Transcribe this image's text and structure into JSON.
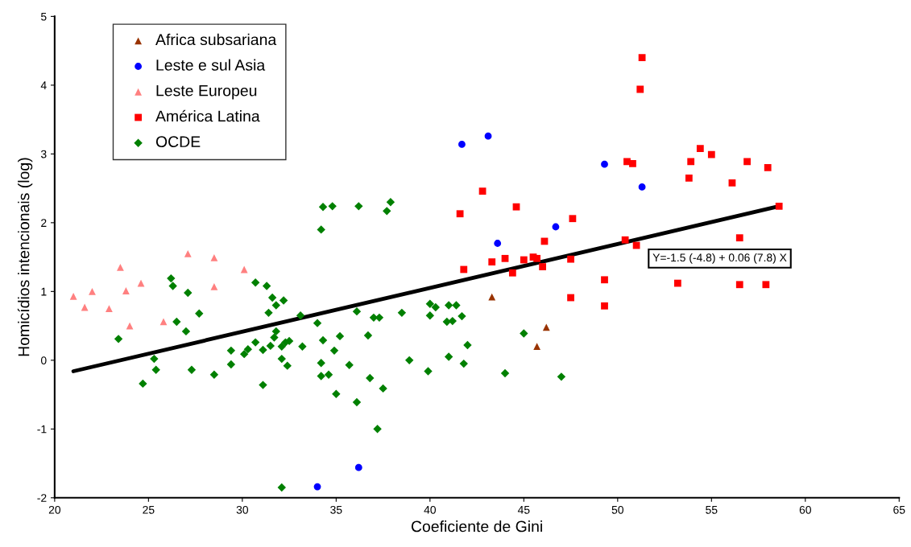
{
  "chart_data": {
    "type": "scatter",
    "xlabel": "Coeficiente de Gini",
    "ylabel": "Homicídios intencionais (log)",
    "xlim": [
      20,
      65
    ],
    "xticks": [
      20,
      25,
      30,
      35,
      40,
      45,
      50,
      55,
      60,
      65
    ],
    "ylim": [
      -2,
      5
    ],
    "yticks": [
      -2,
      -1,
      0,
      1,
      2,
      3,
      4,
      5
    ],
    "grid": false,
    "legend": "top left",
    "annotations": [
      "Y=-1.5 (-4.8) + 0.06 (7.8) X"
    ],
    "series": [
      {
        "name": "Africa subsariana",
        "color": "#993300",
        "marker": "triangle",
        "x": [
          43.3,
          46.2,
          45.7
        ],
        "values": [
          0.92,
          0.48,
          0.2
        ]
      },
      {
        "name": "Leste e sul Asia",
        "color": "#0000ff",
        "marker": "circle",
        "x": [
          41.7,
          43.1,
          43.6,
          46.7,
          49.3,
          51.3,
          36.2,
          34.0
        ],
        "values": [
          3.14,
          3.26,
          1.7,
          1.94,
          2.85,
          2.52,
          -1.56,
          -1.84
        ]
      },
      {
        "name": "Leste Europeu",
        "color": "#ff8080",
        "marker": "triangle",
        "x": [
          21.0,
          21.6,
          22.0,
          22.9,
          23.5,
          23.8,
          24.0,
          24.6,
          25.8,
          27.1,
          28.5,
          28.5,
          30.1
        ],
        "values": [
          0.93,
          0.77,
          1.0,
          0.75,
          1.35,
          1.01,
          0.5,
          1.12,
          0.56,
          1.55,
          1.49,
          1.07,
          1.32
        ]
      },
      {
        "name": "América Latina",
        "color": "#ff0000",
        "marker": "square",
        "x": [
          51.3,
          51.2,
          42.8,
          41.6,
          44.6,
          47.6,
          46.1,
          41.8,
          43.3,
          44.0,
          45.0,
          45.5,
          45.7,
          46.0,
          44.4,
          47.5,
          49.3,
          47.5,
          49.3,
          50.5,
          50.8,
          50.4,
          51.0,
          54.4,
          55.0,
          53.9,
          53.8,
          56.9,
          58.0,
          56.1,
          58.6,
          56.5,
          53.2,
          56.5,
          57.9
        ],
        "values": [
          4.4,
          3.94,
          2.46,
          2.13,
          2.23,
          2.06,
          1.73,
          1.32,
          1.43,
          1.48,
          1.46,
          1.5,
          1.48,
          1.36,
          1.27,
          1.47,
          1.17,
          0.91,
          0.79,
          2.89,
          2.86,
          1.75,
          1.67,
          3.08,
          2.99,
          2.89,
          2.65,
          2.89,
          2.8,
          2.58,
          2.24,
          1.78,
          1.12,
          1.1,
          1.1
        ]
      },
      {
        "name": "OCDE",
        "color": "#008000",
        "marker": "diamond",
        "x": [
          26.2,
          26.3,
          27.1,
          27.7,
          26.5,
          27.0,
          23.4,
          25.3,
          25.4,
          24.7,
          27.3,
          28.5,
          29.4,
          29.4,
          30.1,
          30.3,
          30.7,
          31.1,
          30.7,
          31.3,
          31.6,
          31.8,
          32.2,
          31.4,
          31.8,
          31.7,
          31.5,
          32.1,
          32.3,
          32.5,
          32.1,
          32.4,
          31.1,
          33.1,
          33.2,
          32.1,
          34.3,
          34.8,
          36.2,
          37.9,
          37.7,
          34.2,
          34.0,
          34.3,
          35.2,
          34.9,
          34.2,
          34.2,
          34.6,
          35.7,
          36.1,
          36.7,
          37.0,
          37.3,
          36.8,
          37.5,
          35.0,
          36.1,
          37.2,
          38.5,
          38.9,
          39.9,
          40.0,
          40.3,
          40.0,
          41.0,
          41.4,
          40.9,
          41.2,
          41.7,
          42.0,
          41.0,
          41.8,
          44.0,
          45.0,
          47.0
        ],
        "values": [
          1.19,
          1.08,
          0.98,
          0.68,
          0.56,
          0.42,
          0.31,
          0.02,
          -0.14,
          -0.34,
          -0.14,
          -0.21,
          0.14,
          -0.06,
          0.09,
          0.16,
          0.26,
          0.15,
          1.13,
          1.08,
          0.91,
          0.8,
          0.87,
          0.69,
          0.42,
          0.33,
          0.21,
          0.2,
          0.26,
          0.28,
          0.02,
          -0.08,
          -0.36,
          0.65,
          0.2,
          -1.85,
          2.23,
          2.24,
          2.24,
          2.3,
          2.17,
          1.9,
          0.54,
          0.29,
          0.35,
          0.14,
          -0.04,
          -0.23,
          -0.21,
          -0.07,
          0.71,
          0.36,
          0.62,
          0.62,
          -0.26,
          -0.41,
          -0.49,
          -0.61,
          -1.0,
          0.69,
          0.0,
          -0.16,
          0.82,
          0.77,
          0.65,
          0.8,
          0.8,
          0.56,
          0.57,
          0.64,
          0.22,
          0.05,
          -0.05,
          -0.19,
          0.39,
          -0.24
        ]
      },
      {
        "type": "line",
        "color": "#000000",
        "marker": "none",
        "line_style": "solid",
        "x": [
          21.0,
          58.6
        ],
        "values": [
          -0.16,
          2.24
        ]
      }
    ]
  }
}
